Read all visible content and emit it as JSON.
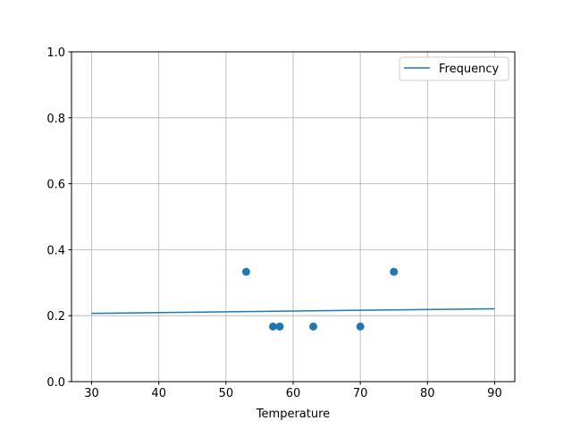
{
  "chart_data": {
    "type": "scatter",
    "title": "",
    "xlabel": "Temperature",
    "ylabel": "",
    "xlim": [
      27,
      93
    ],
    "ylim": [
      0,
      1
    ],
    "xticks": [
      30,
      40,
      50,
      60,
      70,
      80,
      90
    ],
    "yticks": [
      0.0,
      0.2,
      0.4,
      0.6,
      0.8,
      1.0
    ],
    "xtick_labels": [
      "30",
      "40",
      "50",
      "60",
      "70",
      "80",
      "90"
    ],
    "ytick_labels": [
      "0.0",
      "0.2",
      "0.4",
      "0.6",
      "0.8",
      "1.0"
    ],
    "grid": true,
    "legend": {
      "placement": "top-right",
      "entries": [
        "Frequency"
      ]
    },
    "color": "#1f77b4",
    "line": {
      "name": "Frequency",
      "x": [
        30,
        90
      ],
      "y": [
        0.207,
        0.221
      ]
    },
    "points": {
      "x": [
        53,
        57,
        58,
        63,
        70,
        75
      ],
      "y": [
        0.333,
        0.167,
        0.167,
        0.167,
        0.167,
        0.333
      ]
    }
  }
}
